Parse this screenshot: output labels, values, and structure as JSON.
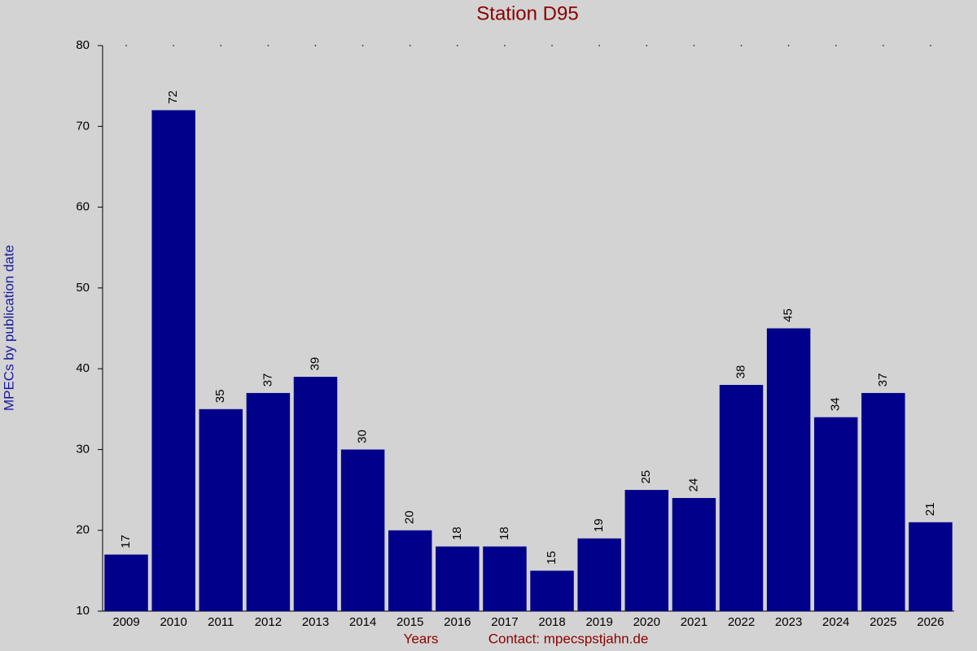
{
  "chart_data": {
    "type": "bar",
    "title": "Station D95",
    "y_label": "MPECs by publication date",
    "x_label": "Years",
    "annotation": "Contact: mpecspstjahn.de",
    "categories": [
      "2009",
      "2010",
      "2011",
      "2012",
      "2013",
      "2014",
      "2015",
      "2016",
      "2017",
      "2018",
      "2019",
      "2020",
      "2021",
      "2022",
      "2023",
      "2024",
      "2025",
      "2026"
    ],
    "values": [
      17,
      72,
      35,
      37,
      39,
      30,
      20,
      18,
      18,
      15,
      19,
      25,
      24,
      38,
      45,
      34,
      37,
      21
    ],
    "color": "#00008b",
    "ylim": [
      10,
      80
    ],
    "yticks": [
      10,
      20,
      30,
      40,
      50,
      60,
      70,
      80
    ],
    "grid": false
  }
}
